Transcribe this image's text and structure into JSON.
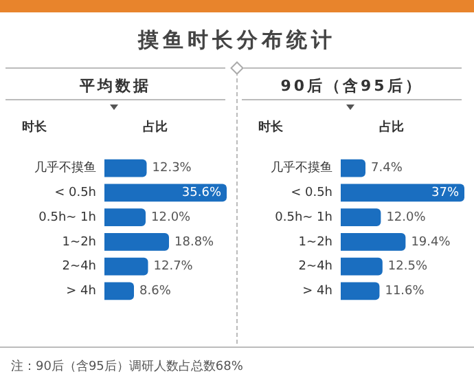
{
  "chart_data": [
    {
      "type": "other",
      "title": "摸鱼时长分布统计",
      "annotations": [
        "注：90后（含95后）调研人数占总数68%"
      ]
    },
    {
      "type": "bar",
      "orientation": "horizontal",
      "title": "平均数据",
      "ylabel": "时长",
      "xlabel": "占比",
      "categories": [
        "几乎不摸鱼",
        "< 0.5h",
        "0.5h~ 1h",
        "1~2h",
        "2~4h",
        "> 4h"
      ],
      "values": [
        12.3,
        35.6,
        12.0,
        18.8,
        12.7,
        8.6
      ],
      "value_labels": [
        "12.3%",
        "35.6%",
        "12.0%",
        "18.8%",
        "12.7%",
        "8.6%"
      ],
      "color": "#1a6ec0",
      "xlim": [
        0,
        36
      ],
      "tick_labels": "y",
      "grid": false,
      "legend": false
    },
    {
      "type": "bar",
      "orientation": "horizontal",
      "title": "90后（含95后）",
      "ylabel": "时长",
      "xlabel": "占比",
      "categories": [
        "几乎不摸鱼",
        "< 0.5h",
        "0.5h~ 1h",
        "1~2h",
        "2~4h",
        "> 4h"
      ],
      "values": [
        7.4,
        37,
        12.0,
        19.4,
        12.5,
        11.6
      ],
      "value_labels": [
        "7.4%",
        "37%",
        "12.0%",
        "19.4%",
        "12.5%",
        "11.6%"
      ],
      "color": "#1a6ec0",
      "xlim": [
        0,
        37
      ],
      "tick_labels": "y",
      "grid": false,
      "legend": false
    }
  ]
}
